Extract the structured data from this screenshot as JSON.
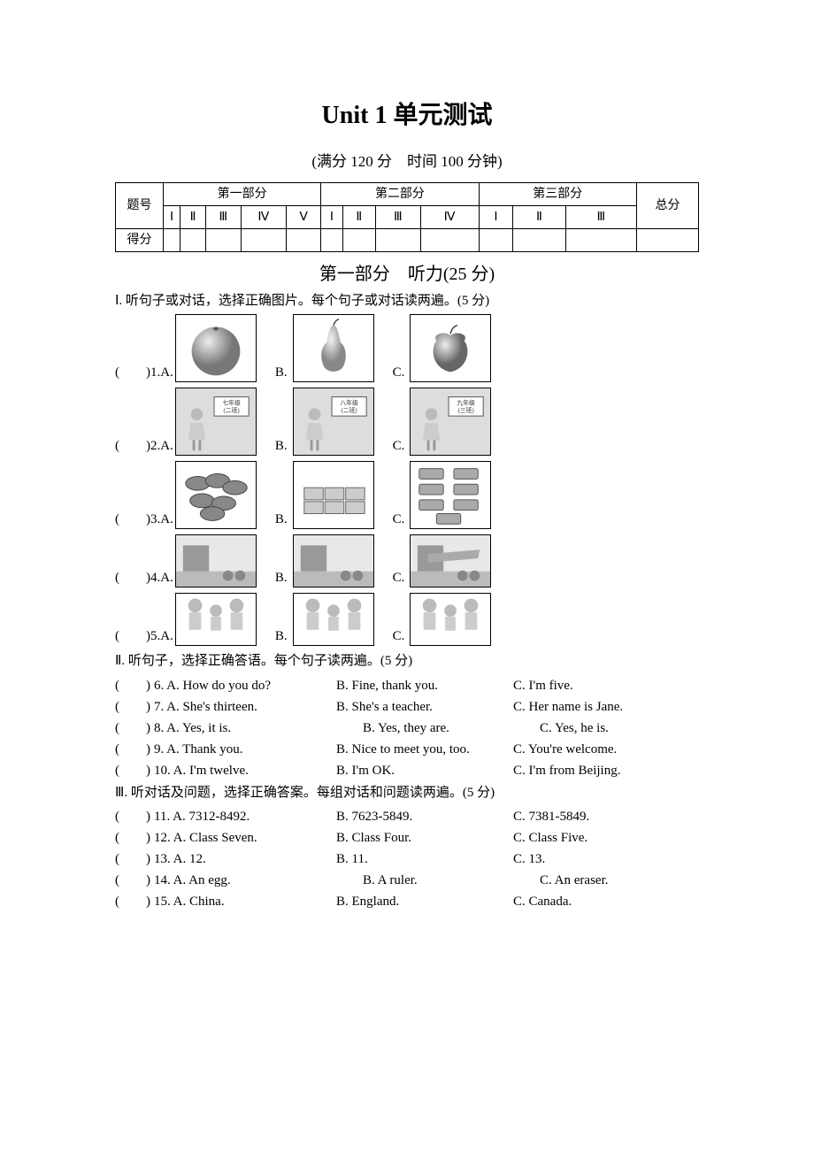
{
  "title": "Unit 1 单元测试",
  "subtitle": "(满分 120 分　时间 100 分钟)",
  "scoreTable": {
    "row1_label": "题号",
    "parts": [
      "第一部分",
      "第二部分",
      "第三部分"
    ],
    "total": "总分",
    "roman_part1": [
      "Ⅰ",
      "Ⅱ",
      "Ⅲ",
      "Ⅳ",
      "Ⅴ"
    ],
    "roman_part2": [
      "Ⅰ",
      "Ⅱ",
      "Ⅲ",
      "Ⅳ"
    ],
    "roman_part3": [
      "Ⅰ",
      "Ⅱ",
      "Ⅲ"
    ],
    "row3_label": "得分"
  },
  "partTitle": "第一部分　听力(25 分)",
  "section1": {
    "heading": "Ⅰ. 听句子或对话，选择正确图片。每个句子或对话读两遍。(5 分)",
    "rows": [
      {
        "num": "1",
        "imgs": [
          "orange-fruit",
          "pear-fruit",
          "apple-fruit"
        ]
      },
      {
        "num": "2",
        "imgs": [
          "grade7-class2",
          "grade8-class2",
          "grade9-class3"
        ]
      },
      {
        "num": "3",
        "imgs": [
          "cars-pile",
          "books-stack",
          "buses-group"
        ]
      },
      {
        "num": "4",
        "imgs": [
          "school-scene",
          "street-scene",
          "airplane-scene"
        ]
      },
      {
        "num": "5",
        "imgs": [
          "family-three-a",
          "family-three-b",
          "family-three-c"
        ]
      }
    ],
    "labels": {
      "A": "A.",
      "B": "B.",
      "C": "C."
    }
  },
  "section2": {
    "heading": "Ⅱ. 听句子，选择正确答语。每个句子读两遍。(5 分)",
    "items": [
      {
        "n": "6",
        "A": "A. How do you do?",
        "B": "B. Fine, thank you.",
        "C": "C. I'm five."
      },
      {
        "n": "7",
        "A": "A. She's thirteen.",
        "B": "B. She's a teacher.",
        "C": "C. Her name is Jane."
      },
      {
        "n": "8",
        "A": "A. Yes, it is.",
        "B": "　　B. Yes, they are.",
        "C": "　　C. Yes, he is."
      },
      {
        "n": "9",
        "A": "A. Thank you.",
        "B": "B. Nice to meet you, too.",
        "C": "C. You're welcome."
      },
      {
        "n": "10",
        "A": "A. I'm twelve.",
        "B": "B. I'm OK.",
        "C": "C. I'm from Beijing."
      }
    ]
  },
  "section3": {
    "heading": "Ⅲ. 听对话及问题，选择正确答案。每组对话和问题读两遍。(5 分)",
    "items": [
      {
        "n": "11",
        "A": "A. 7312-8492.",
        "B": "B. 7623-5849.",
        "C": "C. 7381-5849."
      },
      {
        "n": "12",
        "A": "A. Class Seven.",
        "B": "B. Class Four.",
        "C": "C. Class Five."
      },
      {
        "n": "13",
        "A": "A. 12.",
        "B": "B. 11.",
        "C": "C. 13."
      },
      {
        "n": "14",
        "A": "A. An egg.",
        "B": "　　B. A ruler.",
        "C": "　　C. An eraser."
      },
      {
        "n": "15",
        "A": "A. China.",
        "B": "B. England.",
        "C": "C. Canada."
      }
    ]
  }
}
